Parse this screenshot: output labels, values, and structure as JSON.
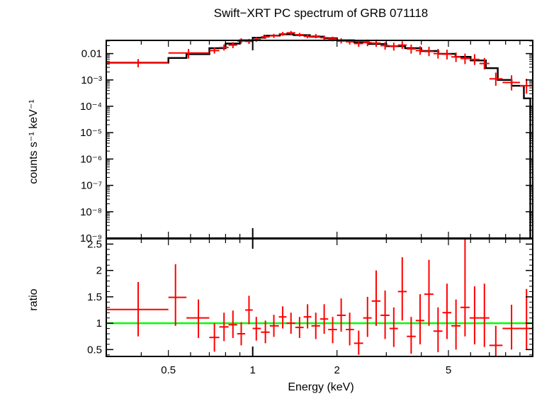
{
  "chart_data": {
    "type": "scatter",
    "title": "Swift−XRT PC spectrum of GRB 071118",
    "xlabel": "Energy (keV)",
    "x_scale": "log",
    "xlim": [
      0.3,
      10
    ],
    "x_ticks": [
      "0.5",
      "1",
      "2",
      "5"
    ],
    "colors": {
      "data": "#ff0000",
      "model": "#000000",
      "unity": "#00ff00"
    },
    "top_panel": {
      "ylabel": "counts s⁻¹ keV⁻¹",
      "y_scale": "log",
      "ylim_exp": [
        -9,
        -1.5
      ],
      "y_tick_labels": [
        "0.01",
        "10⁻³",
        "10⁻⁴",
        "10⁻⁵",
        "10⁻⁶",
        "10⁻⁷",
        "10⁻⁸",
        "10⁻⁹"
      ],
      "y_tick_exps": [
        -2,
        -3,
        -4,
        -5,
        -6,
        -7,
        -8,
        -9
      ],
      "model_steps": [
        {
          "x0": 0.3,
          "x1": 0.5,
          "y": 0.0045
        },
        {
          "x0": 0.5,
          "x1": 0.58,
          "y": 0.0068
        },
        {
          "x0": 0.58,
          "x1": 0.7,
          "y": 0.0095
        },
        {
          "x0": 0.7,
          "x1": 0.8,
          "y": 0.016
        },
        {
          "x0": 0.8,
          "x1": 0.9,
          "y": 0.024
        },
        {
          "x0": 0.9,
          "x1": 1.0,
          "y": 0.032
        },
        {
          "x0": 1.0,
          "x1": 1.1,
          "y": 0.04
        },
        {
          "x0": 1.1,
          "x1": 1.25,
          "y": 0.048
        },
        {
          "x0": 1.25,
          "x1": 1.4,
          "y": 0.054
        },
        {
          "x0": 1.4,
          "x1": 1.6,
          "y": 0.05
        },
        {
          "x0": 1.6,
          "x1": 1.8,
          "y": 0.044
        },
        {
          "x0": 1.8,
          "x1": 2.0,
          "y": 0.038
        },
        {
          "x0": 2.0,
          "x1": 2.3,
          "y": 0.032
        },
        {
          "x0": 2.3,
          "x1": 2.6,
          "y": 0.027
        },
        {
          "x0": 2.6,
          "x1": 3.0,
          "y": 0.023
        },
        {
          "x0": 3.0,
          "x1": 3.5,
          "y": 0.019
        },
        {
          "x0": 3.5,
          "x1": 4.0,
          "y": 0.016
        },
        {
          "x0": 4.0,
          "x1": 4.6,
          "y": 0.0125
        },
        {
          "x0": 4.6,
          "x1": 5.3,
          "y": 0.0098
        },
        {
          "x0": 5.3,
          "x1": 6.0,
          "y": 0.0075
        },
        {
          "x0": 6.0,
          "x1": 6.8,
          "y": 0.0055
        },
        {
          "x0": 6.8,
          "x1": 7.5,
          "y": 0.0028
        },
        {
          "x0": 7.5,
          "x1": 8.4,
          "y": 0.001
        },
        {
          "x0": 8.4,
          "x1": 9.3,
          "y": 0.0006
        },
        {
          "x0": 9.3,
          "x1": 9.8,
          "y": 0.0002
        }
      ],
      "points": [
        {
          "x0": 0.3,
          "x1": 0.5,
          "x": 0.39,
          "y": 0.0045,
          "lo": 0.003,
          "hi": 0.0062
        },
        {
          "x0": 0.5,
          "x1": 0.7,
          "x": 0.59,
          "y": 0.0105,
          "lo": 0.0065,
          "hi": 0.015
        },
        {
          "x0": 0.7,
          "x1": 0.76,
          "x": 0.73,
          "y": 0.013,
          "lo": 0.01,
          "hi": 0.017
        },
        {
          "x0": 0.76,
          "x1": 0.82,
          "x": 0.79,
          "y": 0.017,
          "lo": 0.013,
          "hi": 0.022
        },
        {
          "x0": 0.82,
          "x1": 0.88,
          "x": 0.85,
          "y": 0.021,
          "lo": 0.016,
          "hi": 0.027
        },
        {
          "x0": 0.88,
          "x1": 0.94,
          "x": 0.91,
          "y": 0.03,
          "lo": 0.024,
          "hi": 0.038
        },
        {
          "x0": 0.94,
          "x1": 1.0,
          "x": 0.97,
          "y": 0.029,
          "lo": 0.023,
          "hi": 0.036
        },
        {
          "x0": 1.0,
          "x1": 1.07,
          "x": 1.03,
          "y": 0.034,
          "lo": 0.028,
          "hi": 0.042
        },
        {
          "x0": 1.07,
          "x1": 1.15,
          "x": 1.11,
          "y": 0.043,
          "lo": 0.036,
          "hi": 0.052
        },
        {
          "x0": 1.15,
          "x1": 1.24,
          "x": 1.19,
          "y": 0.047,
          "lo": 0.039,
          "hi": 0.056
        },
        {
          "x0": 1.24,
          "x1": 1.32,
          "x": 1.28,
          "y": 0.056,
          "lo": 0.047,
          "hi": 0.066
        },
        {
          "x0": 1.32,
          "x1": 1.42,
          "x": 1.37,
          "y": 0.061,
          "lo": 0.052,
          "hi": 0.072
        },
        {
          "x0": 1.42,
          "x1": 1.52,
          "x": 1.47,
          "y": 0.052,
          "lo": 0.044,
          "hi": 0.061
        },
        {
          "x0": 1.52,
          "x1": 1.62,
          "x": 1.57,
          "y": 0.045,
          "lo": 0.038,
          "hi": 0.054
        },
        {
          "x0": 1.62,
          "x1": 1.74,
          "x": 1.68,
          "y": 0.046,
          "lo": 0.038,
          "hi": 0.055
        },
        {
          "x0": 1.74,
          "x1": 1.86,
          "x": 1.8,
          "y": 0.04,
          "lo": 0.033,
          "hi": 0.048
        },
        {
          "x0": 1.86,
          "x1": 2.0,
          "x": 1.93,
          "y": 0.036,
          "lo": 0.029,
          "hi": 0.044
        },
        {
          "x0": 2.0,
          "x1": 2.15,
          "x": 2.07,
          "y": 0.03,
          "lo": 0.024,
          "hi": 0.038
        },
        {
          "x0": 2.15,
          "x1": 2.3,
          "x": 2.22,
          "y": 0.028,
          "lo": 0.022,
          "hi": 0.035
        },
        {
          "x0": 2.3,
          "x1": 2.48,
          "x": 2.39,
          "y": 0.024,
          "lo": 0.018,
          "hi": 0.031
        },
        {
          "x0": 2.48,
          "x1": 2.66,
          "x": 2.57,
          "y": 0.026,
          "lo": 0.019,
          "hi": 0.034
        },
        {
          "x0": 2.66,
          "x1": 2.86,
          "x": 2.76,
          "y": 0.025,
          "lo": 0.018,
          "hi": 0.034
        },
        {
          "x0": 2.86,
          "x1": 3.08,
          "x": 2.97,
          "y": 0.02,
          "lo": 0.014,
          "hi": 0.027
        },
        {
          "x0": 3.08,
          "x1": 3.3,
          "x": 3.19,
          "y": 0.019,
          "lo": 0.013,
          "hi": 0.026
        },
        {
          "x0": 3.3,
          "x1": 3.55,
          "x": 3.42,
          "y": 0.021,
          "lo": 0.015,
          "hi": 0.029
        },
        {
          "x0": 3.55,
          "x1": 3.82,
          "x": 3.68,
          "y": 0.015,
          "lo": 0.01,
          "hi": 0.022
        },
        {
          "x0": 3.82,
          "x1": 4.1,
          "x": 3.96,
          "y": 0.013,
          "lo": 0.009,
          "hi": 0.019
        },
        {
          "x0": 4.1,
          "x1": 4.42,
          "x": 4.26,
          "y": 0.012,
          "lo": 0.008,
          "hi": 0.018
        },
        {
          "x0": 4.42,
          "x1": 4.76,
          "x": 4.59,
          "y": 0.01,
          "lo": 0.0065,
          "hi": 0.015
        },
        {
          "x0": 4.76,
          "x1": 5.12,
          "x": 4.94,
          "y": 0.0095,
          "lo": 0.006,
          "hi": 0.014
        },
        {
          "x0": 5.12,
          "x1": 5.52,
          "x": 5.32,
          "y": 0.0075,
          "lo": 0.0048,
          "hi": 0.011
        },
        {
          "x0": 5.52,
          "x1": 5.95,
          "x": 5.73,
          "y": 0.0065,
          "lo": 0.004,
          "hi": 0.01
        },
        {
          "x0": 5.95,
          "x1": 6.45,
          "x": 6.2,
          "y": 0.006,
          "lo": 0.0037,
          "hi": 0.0095
        },
        {
          "x0": 6.45,
          "x1": 7.0,
          "x": 6.72,
          "y": 0.0042,
          "lo": 0.0025,
          "hi": 0.0068
        },
        {
          "x0": 7.0,
          "x1": 7.8,
          "x": 7.38,
          "y": 0.0011,
          "lo": 0.0006,
          "hi": 0.0019
        },
        {
          "x0": 7.8,
          "x1": 9.0,
          "x": 8.4,
          "y": 0.0008,
          "lo": 0.0004,
          "hi": 0.0015
        },
        {
          "x0": 9.0,
          "x1": 10.0,
          "x": 9.5,
          "y": 0.0006,
          "lo": 0.0003,
          "hi": 0.0011
        }
      ]
    },
    "bottom_panel": {
      "ylabel": "ratio",
      "ylim": [
        0.37,
        2.6
      ],
      "y_ticks": [
        "0.5",
        "1",
        "1.5",
        "2",
        "2.5"
      ],
      "unity": 1,
      "points": [
        {
          "x0": 0.3,
          "x1": 0.5,
          "x": 0.39,
          "y": 1.26,
          "lo": 0.75,
          "hi": 1.78
        },
        {
          "x0": 0.5,
          "x1": 0.58,
          "x": 0.53,
          "y": 1.49,
          "lo": 0.95,
          "hi": 2.12
        },
        {
          "x0": 0.58,
          "x1": 0.7,
          "x": 0.64,
          "y": 1.1,
          "lo": 0.72,
          "hi": 1.45
        },
        {
          "x0": 0.7,
          "x1": 0.76,
          "x": 0.73,
          "y": 0.73,
          "lo": 0.46,
          "hi": 1.0
        },
        {
          "x0": 0.76,
          "x1": 0.82,
          "x": 0.79,
          "y": 0.93,
          "lo": 0.66,
          "hi": 1.2
        },
        {
          "x0": 0.82,
          "x1": 0.88,
          "x": 0.85,
          "y": 0.97,
          "lo": 0.72,
          "hi": 1.24
        },
        {
          "x0": 0.88,
          "x1": 0.94,
          "x": 0.91,
          "y": 0.8,
          "lo": 0.58,
          "hi": 1.02
        },
        {
          "x0": 0.94,
          "x1": 1.0,
          "x": 0.97,
          "y": 1.25,
          "lo": 0.98,
          "hi": 1.52
        },
        {
          "x0": 1.0,
          "x1": 1.07,
          "x": 1.03,
          "y": 0.9,
          "lo": 0.67,
          "hi": 1.12
        },
        {
          "x0": 1.07,
          "x1": 1.15,
          "x": 1.11,
          "y": 0.83,
          "lo": 0.62,
          "hi": 1.05
        },
        {
          "x0": 1.15,
          "x1": 1.24,
          "x": 1.19,
          "y": 0.95,
          "lo": 0.74,
          "hi": 1.16
        },
        {
          "x0": 1.24,
          "x1": 1.32,
          "x": 1.28,
          "y": 1.12,
          "lo": 0.9,
          "hi": 1.32
        },
        {
          "x0": 1.32,
          "x1": 1.42,
          "x": 1.37,
          "y": 1.0,
          "lo": 0.8,
          "hi": 1.2
        },
        {
          "x0": 1.42,
          "x1": 1.52,
          "x": 1.47,
          "y": 0.92,
          "lo": 0.72,
          "hi": 1.12
        },
        {
          "x0": 1.52,
          "x1": 1.62,
          "x": 1.57,
          "y": 1.12,
          "lo": 0.9,
          "hi": 1.36
        },
        {
          "x0": 1.62,
          "x1": 1.74,
          "x": 1.68,
          "y": 0.95,
          "lo": 0.7,
          "hi": 1.2
        },
        {
          "x0": 1.74,
          "x1": 1.86,
          "x": 1.8,
          "y": 1.08,
          "lo": 0.8,
          "hi": 1.36
        },
        {
          "x0": 1.86,
          "x1": 2.0,
          "x": 1.93,
          "y": 0.88,
          "lo": 0.62,
          "hi": 1.12
        },
        {
          "x0": 2.0,
          "x1": 2.15,
          "x": 2.07,
          "y": 1.15,
          "lo": 0.84,
          "hi": 1.47
        },
        {
          "x0": 2.15,
          "x1": 2.3,
          "x": 2.22,
          "y": 0.88,
          "lo": 0.58,
          "hi": 1.2
        },
        {
          "x0": 2.3,
          "x1": 2.48,
          "x": 2.39,
          "y": 0.62,
          "lo": 0.4,
          "hi": 0.86
        },
        {
          "x0": 2.48,
          "x1": 2.66,
          "x": 2.57,
          "y": 1.1,
          "lo": 0.74,
          "hi": 1.5
        },
        {
          "x0": 2.66,
          "x1": 2.86,
          "x": 2.76,
          "y": 1.42,
          "lo": 0.95,
          "hi": 2.0
        },
        {
          "x0": 2.86,
          "x1": 3.08,
          "x": 2.97,
          "y": 1.15,
          "lo": 0.7,
          "hi": 1.62
        },
        {
          "x0": 3.08,
          "x1": 3.3,
          "x": 3.19,
          "y": 0.9,
          "lo": 0.55,
          "hi": 1.3
        },
        {
          "x0": 3.3,
          "x1": 3.55,
          "x": 3.42,
          "y": 1.6,
          "lo": 1.05,
          "hi": 2.25
        },
        {
          "x0": 3.55,
          "x1": 3.82,
          "x": 3.68,
          "y": 0.75,
          "lo": 0.42,
          "hi": 1.12
        },
        {
          "x0": 3.82,
          "x1": 4.1,
          "x": 3.96,
          "y": 1.05,
          "lo": 0.6,
          "hi": 1.55
        },
        {
          "x0": 4.1,
          "x1": 4.42,
          "x": 4.26,
          "y": 1.55,
          "lo": 0.95,
          "hi": 2.2
        },
        {
          "x0": 4.42,
          "x1": 4.76,
          "x": 4.59,
          "y": 0.85,
          "lo": 0.45,
          "hi": 1.3
        },
        {
          "x0": 4.76,
          "x1": 5.12,
          "x": 4.94,
          "y": 1.2,
          "lo": 0.7,
          "hi": 1.75
        },
        {
          "x0": 5.12,
          "x1": 5.52,
          "x": 5.32,
          "y": 0.95,
          "lo": 0.5,
          "hi": 1.45
        },
        {
          "x0": 5.52,
          "x1": 5.95,
          "x": 5.73,
          "y": 1.3,
          "lo": 0.75,
          "hi": 2.6
        },
        {
          "x0": 5.95,
          "x1": 6.45,
          "x": 6.2,
          "y": 1.1,
          "lo": 0.6,
          "hi": 1.7
        },
        {
          "x0": 6.45,
          "x1": 7.0,
          "x": 6.72,
          "y": 1.1,
          "lo": 0.55,
          "hi": 1.75
        },
        {
          "x0": 7.0,
          "x1": 7.8,
          "x": 7.38,
          "y": 0.58,
          "lo": 0.38,
          "hi": 0.95
        },
        {
          "x0": 7.8,
          "x1": 9.0,
          "x": 8.4,
          "y": 0.9,
          "lo": 0.5,
          "hi": 1.35
        },
        {
          "x0": 9.0,
          "x1": 10.0,
          "x": 9.5,
          "y": 0.9,
          "lo": 0.5,
          "hi": 1.65
        }
      ]
    }
  }
}
